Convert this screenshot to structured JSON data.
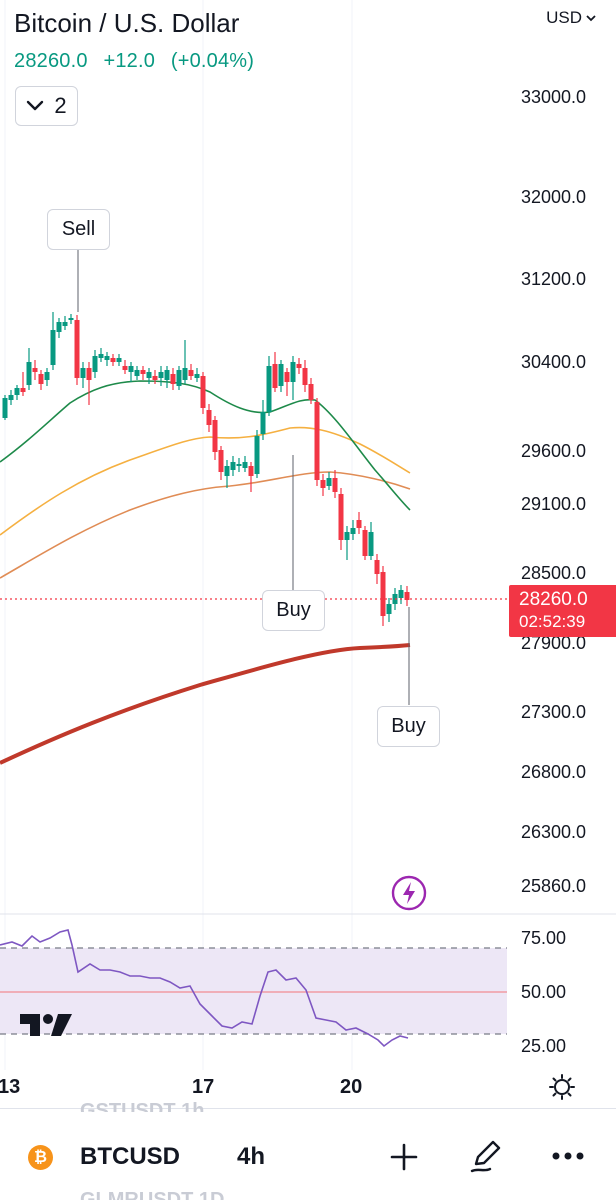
{
  "header": {
    "title": "Bitcoin / U.S. Dollar",
    "price": "28260.0",
    "change": "+12.0",
    "change_pct": "(+0.04%)",
    "indicator_count": "2",
    "currency": "USD"
  },
  "price_axis": {
    "labels": [
      "33000.0",
      "32000.0",
      "31200.0",
      "30400.0",
      "29600.0",
      "29100.0",
      "28500.0",
      "27900.0",
      "27300.0",
      "26800.0",
      "26300.0",
      "25860.0"
    ],
    "last_price": "28260.0",
    "countdown": "02:52:39"
  },
  "rsi_axis": {
    "labels": [
      "75.00",
      "50.00",
      "25.00"
    ]
  },
  "time_axis": {
    "labels": [
      "13",
      "17",
      "20"
    ]
  },
  "signals": {
    "sell": "Sell",
    "buy_1": "Buy",
    "buy_2": "Buy"
  },
  "bottom_bar": {
    "symbol": "BTCUSD",
    "interval": "4h",
    "ghost_top": "GSTUSDT 1h",
    "ghost_bottom": "GLMRUSDT 1D"
  },
  "colors": {
    "up": "#089981",
    "down": "#f23645",
    "ema_green": "#1e8a4a",
    "ema_yellow": "#f5b041",
    "ema_orange": "#e08c55",
    "ema_red": "#c0392b",
    "rsi_line": "#7e57c2",
    "rsi_band": "#ede7f6",
    "purple_icon": "#9c27b0"
  },
  "icons": [
    "chevron-down-icon",
    "bolt-icon",
    "crosshair-icon",
    "bitcoin-icon",
    "plus-icon",
    "pen-icon",
    "more-icon",
    "tradingview-logo"
  ]
}
